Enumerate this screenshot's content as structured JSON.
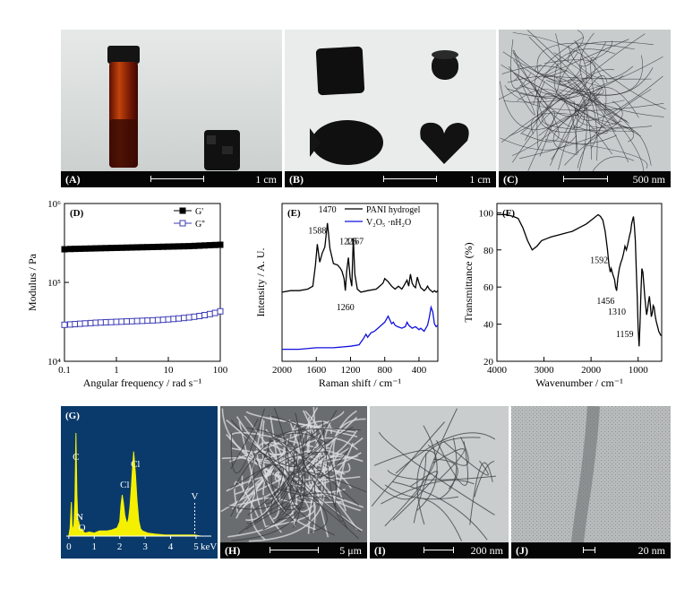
{
  "panels": {
    "A": {
      "label": "(A)",
      "scale": "1 cm"
    },
    "B": {
      "label": "(B)",
      "scale": "1 cm"
    },
    "C": {
      "label": "(C)",
      "scale": "500 nm"
    },
    "H": {
      "label": "(H)",
      "scale": "5 μm"
    },
    "I": {
      "label": "(I)",
      "scale": "200 nm"
    },
    "J": {
      "label": "(J)",
      "scale": "20 nm"
    }
  },
  "chart_data": [
    {
      "type": "scatter",
      "panel_label": "(D)",
      "xlabel": "Angular frequency / rad s⁻¹",
      "ylabel": "Modulus / Pa",
      "x_scale": "log",
      "y_scale": "log",
      "xlim": [
        0.1,
        100
      ],
      "ylim": [
        10000,
        1000000
      ],
      "x_ticks": [
        "0.1",
        "1",
        "10",
        "100"
      ],
      "y_ticks": [
        "10⁴",
        "10⁵",
        "10⁶"
      ],
      "legend_position": "top-right",
      "series": [
        {
          "name": "G'",
          "marker": "filled-square",
          "color": "#000000",
          "x": [
            0.1,
            0.13,
            0.16,
            0.2,
            0.25,
            0.32,
            0.4,
            0.5,
            0.63,
            0.79,
            1,
            1.26,
            1.58,
            2,
            2.51,
            3.16,
            3.98,
            5.01,
            6.31,
            7.94,
            10,
            12.6,
            15.8,
            20,
            25.1,
            31.6,
            39.8,
            50.1,
            63.1,
            79.4,
            100
          ],
          "y": [
            263000,
            265000,
            266000,
            267000,
            268000,
            269000,
            270000,
            271000,
            272000,
            273000,
            274000,
            275000,
            276000,
            277000,
            278000,
            279000,
            280000,
            281000,
            282000,
            283000,
            284000,
            285000,
            286000,
            287000,
            288000,
            290000,
            292000,
            294000,
            296000,
            298000,
            300000
          ]
        },
        {
          "name": "G''",
          "marker": "open-square",
          "color": "#3b3bb5",
          "x": [
            0.1,
            0.13,
            0.16,
            0.2,
            0.25,
            0.32,
            0.4,
            0.5,
            0.63,
            0.79,
            1,
            1.26,
            1.58,
            2,
            2.51,
            3.16,
            3.98,
            5.01,
            6.31,
            7.94,
            10,
            12.6,
            15.8,
            20,
            25.1,
            31.6,
            39.8,
            50.1,
            63.1,
            79.4,
            100
          ],
          "y": [
            29000,
            29300,
            29600,
            29900,
            30200,
            30500,
            30800,
            31000,
            31200,
            31400,
            31600,
            31800,
            32000,
            32200,
            32400,
            32600,
            32800,
            33000,
            33300,
            33600,
            34000,
            34400,
            34900,
            35400,
            36000,
            36700,
            37500,
            38500,
            39700,
            41000,
            43000
          ]
        }
      ]
    },
    {
      "type": "line",
      "panel_label": "(E)",
      "xlabel": "Raman shift / cm⁻¹",
      "ylabel": "Intensity / A. U.",
      "x_reversed": true,
      "xlim": [
        2000,
        180
      ],
      "x_ticks": [
        "2000",
        "1600",
        "1200",
        "800",
        "400"
      ],
      "y_ticks_shown": false,
      "legend_position": "top-right",
      "annotations": [
        "1588",
        "1470",
        "1225",
        "1167",
        "1260"
      ],
      "series": [
        {
          "name": "PANI hydrogel",
          "color": "#000000",
          "x": [
            2000,
            1900,
            1800,
            1700,
            1640,
            1610,
            1588,
            1560,
            1530,
            1500,
            1470,
            1440,
            1400,
            1350,
            1320,
            1300,
            1275,
            1260,
            1245,
            1225,
            1205,
            1185,
            1167,
            1150,
            1120,
            1080,
            1000,
            900,
            860,
            820,
            800,
            760,
            720,
            680,
            640,
            600,
            580,
            560,
            540,
            520,
            500,
            480,
            460,
            440,
            420,
            400,
            380,
            360,
            340,
            320,
            300,
            280,
            260,
            240,
            220,
            200,
            180
          ],
          "y": [
            0.26,
            0.27,
            0.27,
            0.28,
            0.3,
            0.44,
            0.58,
            0.46,
            0.52,
            0.56,
            0.72,
            0.55,
            0.45,
            0.44,
            0.42,
            0.4,
            0.35,
            0.27,
            0.4,
            0.49,
            0.36,
            0.3,
            0.62,
            0.38,
            0.28,
            0.26,
            0.27,
            0.28,
            0.3,
            0.32,
            0.35,
            0.33,
            0.3,
            0.28,
            0.3,
            0.28,
            0.3,
            0.32,
            0.34,
            0.3,
            0.38,
            0.32,
            0.3,
            0.29,
            0.36,
            0.32,
            0.29,
            0.28,
            0.27,
            0.28,
            0.3,
            0.28,
            0.27,
            0.26,
            0.27,
            0.26,
            0.27
          ]
        },
        {
          "name": "V₂O₅ ·nH₂O",
          "color": "#1010dd",
          "x": [
            2000,
            1800,
            1600,
            1400,
            1200,
            1100,
            1050,
            1020,
            1000,
            960,
            920,
            880,
            840,
            800,
            760,
            720,
            700,
            680,
            650,
            600,
            560,
            540,
            520,
            480,
            440,
            400,
            380,
            340,
            300,
            280,
            260,
            240,
            220,
            200,
            180
          ],
          "y": [
            -0.12,
            -0.12,
            -0.11,
            -0.11,
            -0.1,
            -0.09,
            -0.05,
            -0.02,
            -0.04,
            -0.01,
            0.0,
            0.02,
            0.04,
            0.06,
            0.1,
            0.05,
            0.06,
            0.04,
            0.03,
            0.02,
            0.03,
            0.06,
            0.04,
            0.02,
            0.03,
            0.01,
            0.02,
            0.0,
            0.04,
            0.09,
            0.16,
            0.13,
            0.05,
            0.03,
            0.04
          ]
        }
      ]
    },
    {
      "type": "line",
      "panel_label": "(F)",
      "xlabel": "Wavenumber / cm⁻¹",
      "ylabel": "Transmittance (%)",
      "x_reversed": true,
      "xlim": [
        4000,
        500
      ],
      "ylim": [
        20,
        105
      ],
      "x_ticks": [
        "4000",
        "3000",
        "2000",
        "1000"
      ],
      "y_ticks": [
        "20",
        "40",
        "60",
        "80",
        "100"
      ],
      "annotations": [
        "1592",
        "1456",
        "1310",
        "1159"
      ],
      "series": [
        {
          "name": "",
          "color": "#000000",
          "x": [
            4000,
            3800,
            3650,
            3550,
            3450,
            3350,
            3250,
            3150,
            3050,
            2950,
            2850,
            2700,
            2550,
            2400,
            2250,
            2100,
            1950,
            1850,
            1800,
            1750,
            1700,
            1650,
            1620,
            1592,
            1570,
            1540,
            1500,
            1480,
            1456,
            1430,
            1400,
            1370,
            1340,
            1310,
            1280,
            1250,
            1220,
            1180,
            1159,
            1140,
            1120,
            1100,
            1080,
            1060,
            1040,
            1020,
            1000,
            980,
            960,
            940,
            920,
            900,
            880,
            860,
            840,
            820,
            800,
            780,
            760,
            740,
            720,
            700,
            680,
            660,
            640,
            620,
            600,
            580,
            560,
            540,
            520,
            500
          ],
          "y": [
            99,
            99,
            98,
            97,
            92,
            85,
            80,
            82,
            85,
            86,
            87,
            88,
            89,
            90,
            92,
            94,
            97,
            99,
            98,
            96,
            90,
            80,
            72,
            68,
            70,
            67,
            64,
            60,
            58,
            65,
            70,
            73,
            75,
            78,
            82,
            80,
            83,
            88,
            90,
            94,
            96,
            98,
            93,
            85,
            70,
            55,
            38,
            28,
            40,
            58,
            70,
            68,
            62,
            55,
            50,
            45,
            48,
            52,
            55,
            50,
            44,
            46,
            50,
            49,
            45,
            42,
            40,
            38,
            36,
            35,
            34,
            34
          ]
        }
      ]
    },
    {
      "type": "bar",
      "panel_label": "(G)",
      "x_ticks": [
        "0",
        "1",
        "2",
        "3",
        "4",
        "5"
      ],
      "x_unit": "keV",
      "xlim": [
        -0.1,
        5.6
      ],
      "peak_labels": [
        {
          "text": "C",
          "x": 0.28
        },
        {
          "text": "N",
          "x": 0.39
        },
        {
          "text": "O",
          "x": 0.52
        },
        {
          "text": "Cl",
          "x": 2.2
        },
        {
          "text": "Cl",
          "x": 2.62
        },
        {
          "text": "V",
          "x": 4.95
        }
      ],
      "spectrum_x": [
        0,
        0.05,
        0.1,
        0.13,
        0.16,
        0.2,
        0.24,
        0.28,
        0.32,
        0.36,
        0.39,
        0.43,
        0.47,
        0.52,
        0.58,
        0.65,
        0.8,
        1,
        1.2,
        1.5,
        1.7,
        1.9,
        2.0,
        2.05,
        2.1,
        2.15,
        2.2,
        2.25,
        2.3,
        2.35,
        2.4,
        2.45,
        2.5,
        2.55,
        2.62,
        2.68,
        2.75,
        2.82,
        2.9,
        3.1,
        3.4,
        3.8,
        4.2,
        4.6,
        4.95,
        5.2,
        5.5
      ],
      "spectrum_y": [
        0,
        0.08,
        0.33,
        0.12,
        0.05,
        0.1,
        0.35,
        1.0,
        0.4,
        0.12,
        0.14,
        0.08,
        0.06,
        0.07,
        0.04,
        0.03,
        0.04,
        0.03,
        0.05,
        0.05,
        0.06,
        0.08,
        0.14,
        0.3,
        0.4,
        0.32,
        0.2,
        0.15,
        0.12,
        0.17,
        0.28,
        0.45,
        0.65,
        0.82,
        0.6,
        0.35,
        0.15,
        0.07,
        0.05,
        0.03,
        0.02,
        0.01,
        0.01,
        0.01,
        0.01,
        0.0,
        0.0
      ],
      "background_color": "#0a3a6b",
      "fill_color": "#f4f000"
    }
  ]
}
